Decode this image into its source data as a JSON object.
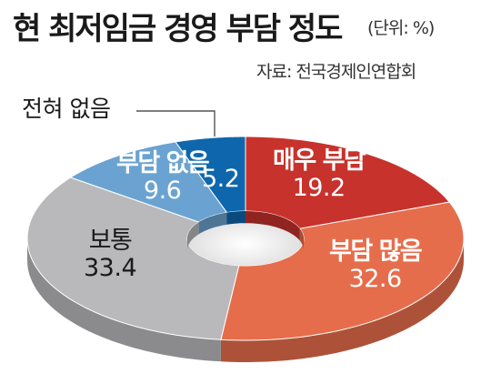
{
  "title": "현 최저임금 경영 부담 정도",
  "unit": "(단위: %)",
  "source": "자료: 전국경제인연합회",
  "colors": {
    "very_high": "#c8322c",
    "high": "#e66d4b",
    "normal": "#b9b9bc",
    "none": "#6aa3d1",
    "not_at_all": "#0e67ad"
  },
  "chart_data": {
    "type": "pie",
    "variant": "3d-donut",
    "categories": [
      "매우 부담",
      "부담 많음",
      "보통",
      "부담 없음",
      "전혀 없음"
    ],
    "values": [
      19.2,
      32.6,
      33.4,
      9.6,
      5.2
    ],
    "labels": {
      "very_high": {
        "name": "매우 부담",
        "value": "19.2"
      },
      "high": {
        "name": "부담 많음",
        "value": "32.6"
      },
      "normal": {
        "name": "보통",
        "value": "33.4"
      },
      "none": {
        "name": "부담 없음",
        "value": "9.6"
      },
      "not_at_all": {
        "name": "전혀 없음",
        "value": "5.2"
      }
    }
  }
}
